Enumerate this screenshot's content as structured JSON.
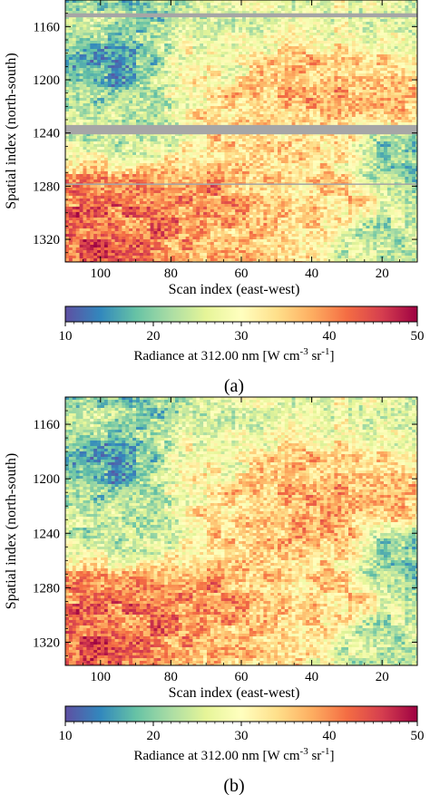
{
  "chart_data": [
    {
      "type": "heatmap",
      "panel_label": "(a)",
      "xlabel": "Scan index (east-west)",
      "ylabel": "Spatial index (north-south)",
      "x_ticks": [
        100,
        80,
        60,
        40,
        20
      ],
      "y_ticks": [
        1160,
        1200,
        1240,
        1280,
        1320
      ],
      "xlim": [
        110,
        10
      ],
      "ylim": [
        1140,
        1337
      ],
      "x_reversed": true,
      "y_reversed": true,
      "colormap": "Spectral_r",
      "colorbar": {
        "label_main": "Radiance at 312.00 nm [W cm",
        "label_exp1": "-3",
        "label_mid": " sr",
        "label_exp2": "-1",
        "label_end": "]",
        "ticks": [
          10,
          20,
          30,
          40,
          50
        ],
        "range": [
          10,
          50
        ]
      },
      "missing_rows": [
        [
          1150,
          1153
        ],
        [
          1234,
          1241
        ],
        [
          1278,
          1278.6
        ]
      ],
      "missing_color": "#a6a6a6",
      "approx_field": [
        {
          "x": 15,
          "y": 1150,
          "value": 27
        },
        {
          "x": 40,
          "y": 1150,
          "value": 28
        },
        {
          "x": 60,
          "y": 1150,
          "value": 26
        },
        {
          "x": 90,
          "y": 1150,
          "value": 21
        },
        {
          "x": 105,
          "y": 1150,
          "value": 23
        },
        {
          "x": 95,
          "y": 1190,
          "value": 18
        },
        {
          "x": 70,
          "y": 1190,
          "value": 30
        },
        {
          "x": 40,
          "y": 1200,
          "value": 37
        },
        {
          "x": 20,
          "y": 1210,
          "value": 36
        },
        {
          "x": 60,
          "y": 1225,
          "value": 35
        },
        {
          "x": 90,
          "y": 1230,
          "value": 24
        },
        {
          "x": 40,
          "y": 1255,
          "value": 33
        },
        {
          "x": 15,
          "y": 1260,
          "value": 21
        },
        {
          "x": 90,
          "y": 1300,
          "value": 41
        },
        {
          "x": 75,
          "y": 1300,
          "value": 40
        },
        {
          "x": 35,
          "y": 1290,
          "value": 34
        },
        {
          "x": 20,
          "y": 1320,
          "value": 24
        },
        {
          "x": 100,
          "y": 1320,
          "value": 43
        },
        {
          "x": 60,
          "y": 1325,
          "value": 36
        }
      ]
    },
    {
      "type": "heatmap",
      "panel_label": "(b)",
      "xlabel": "Scan index (east-west)",
      "ylabel": "Spatial index (north-south)",
      "x_ticks": [
        100,
        80,
        60,
        40,
        20
      ],
      "y_ticks": [
        1160,
        1200,
        1240,
        1280,
        1320
      ],
      "xlim": [
        110,
        10
      ],
      "ylim": [
        1140,
        1337
      ],
      "x_reversed": true,
      "y_reversed": true,
      "colormap": "Spectral_r",
      "colorbar": {
        "label_main": "Radiance at 312.00 nm [W cm",
        "label_exp1": "-3",
        "label_mid": " sr",
        "label_exp2": "-1",
        "label_end": "]",
        "ticks": [
          10,
          20,
          30,
          40,
          50
        ],
        "range": [
          10,
          50
        ]
      },
      "missing_rows": [],
      "approx_field": [
        {
          "x": 15,
          "y": 1150,
          "value": 27
        },
        {
          "x": 40,
          "y": 1150,
          "value": 28
        },
        {
          "x": 60,
          "y": 1150,
          "value": 26
        },
        {
          "x": 90,
          "y": 1150,
          "value": 21
        },
        {
          "x": 105,
          "y": 1150,
          "value": 23
        },
        {
          "x": 95,
          "y": 1190,
          "value": 18
        },
        {
          "x": 70,
          "y": 1190,
          "value": 30
        },
        {
          "x": 40,
          "y": 1200,
          "value": 37
        },
        {
          "x": 20,
          "y": 1210,
          "value": 36
        },
        {
          "x": 60,
          "y": 1225,
          "value": 35
        },
        {
          "x": 90,
          "y": 1230,
          "value": 24
        },
        {
          "x": 40,
          "y": 1240,
          "value": 38
        },
        {
          "x": 40,
          "y": 1255,
          "value": 33
        },
        {
          "x": 15,
          "y": 1260,
          "value": 21
        },
        {
          "x": 90,
          "y": 1300,
          "value": 41
        },
        {
          "x": 75,
          "y": 1300,
          "value": 40
        },
        {
          "x": 35,
          "y": 1290,
          "value": 34
        },
        {
          "x": 20,
          "y": 1320,
          "value": 24
        },
        {
          "x": 100,
          "y": 1320,
          "value": 43
        },
        {
          "x": 60,
          "y": 1325,
          "value": 36
        }
      ]
    }
  ]
}
